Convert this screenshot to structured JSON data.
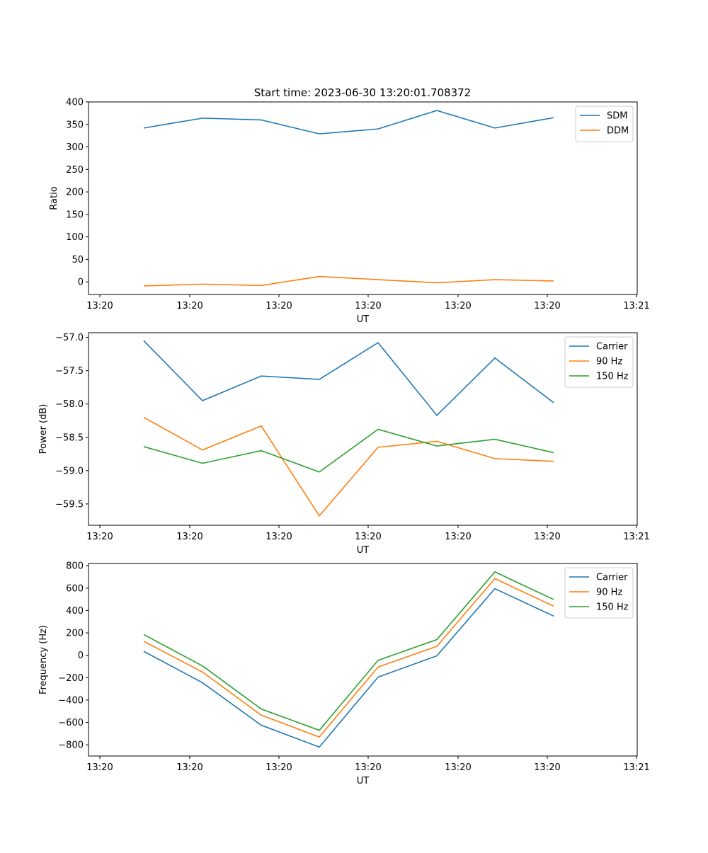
{
  "title": "Start time: 2023-06-30 13:20:01.708372",
  "chart_data": [
    {
      "type": "line",
      "ylabel": "Ratio",
      "xlabel": "UT",
      "x_tick_labels": [
        "13:20",
        "13:20",
        "13:20",
        "13:20",
        "13:20",
        "13:20",
        "13:20"
      ],
      "x_end_label": "13:21",
      "yticks": [
        "0",
        "50",
        "100",
        "150",
        "200",
        "250",
        "300",
        "350",
        "400"
      ],
      "ylim": [
        -28,
        400
      ],
      "legend_position": "top-right",
      "series": [
        {
          "name": "SDM",
          "color": "#1f77b4",
          "values": [
            342,
            364,
            360,
            329,
            340,
            381,
            342,
            365
          ]
        },
        {
          "name": "DDM",
          "color": "#ff7f0e",
          "values": [
            -9,
            -5,
            -8,
            12,
            5,
            -2,
            5,
            2
          ]
        }
      ]
    },
    {
      "type": "line",
      "ylabel": "Power (dB)",
      "xlabel": "UT",
      "x_tick_labels": [
        "13:20",
        "13:20",
        "13:20",
        "13:20",
        "13:20",
        "13:20",
        "13:20"
      ],
      "x_end_label": "13:21",
      "yticks": [
        "−59.5",
        "−59.0",
        "−58.5",
        "−58.0",
        "−57.5",
        "−57.0"
      ],
      "ylim": [
        -59.82,
        -56.93
      ],
      "legend_position": "top-right",
      "series": [
        {
          "name": "Carrier",
          "color": "#1f77b4",
          "values": [
            -57.05,
            -57.95,
            -57.58,
            -57.63,
            -57.08,
            -58.17,
            -57.31,
            -57.98
          ]
        },
        {
          "name": "90 Hz",
          "color": "#ff7f0e",
          "values": [
            -58.2,
            -58.69,
            -58.33,
            -59.68,
            -58.65,
            -58.56,
            -58.82,
            -58.86
          ]
        },
        {
          "name": "150 Hz",
          "color": "#2ca02c",
          "values": [
            -58.64,
            -58.89,
            -58.7,
            -59.02,
            -58.38,
            -58.63,
            -58.53,
            -58.73
          ]
        }
      ]
    },
    {
      "type": "line",
      "ylabel": "Frequency (Hz)",
      "xlabel": "UT",
      "x_tick_labels": [
        "13:20",
        "13:20",
        "13:20",
        "13:20",
        "13:20",
        "13:20",
        "13:20"
      ],
      "x_end_label": "13:21",
      "yticks": [
        "−800",
        "−600",
        "−400",
        "−200",
        "0",
        "200",
        "400",
        "600",
        "800"
      ],
      "ylim": [
        -900,
        820
      ],
      "legend_position": "top-right",
      "series": [
        {
          "name": "Carrier",
          "color": "#1f77b4",
          "values": [
            35,
            -245,
            -625,
            -820,
            -195,
            -5,
            595,
            350
          ]
        },
        {
          "name": "90 Hz",
          "color": "#ff7f0e",
          "values": [
            125,
            -150,
            -535,
            -730,
            -105,
            80,
            685,
            438
          ]
        },
        {
          "name": "150 Hz",
          "color": "#2ca02c",
          "values": [
            185,
            -95,
            -480,
            -670,
            -45,
            140,
            745,
            498
          ]
        }
      ]
    }
  ]
}
